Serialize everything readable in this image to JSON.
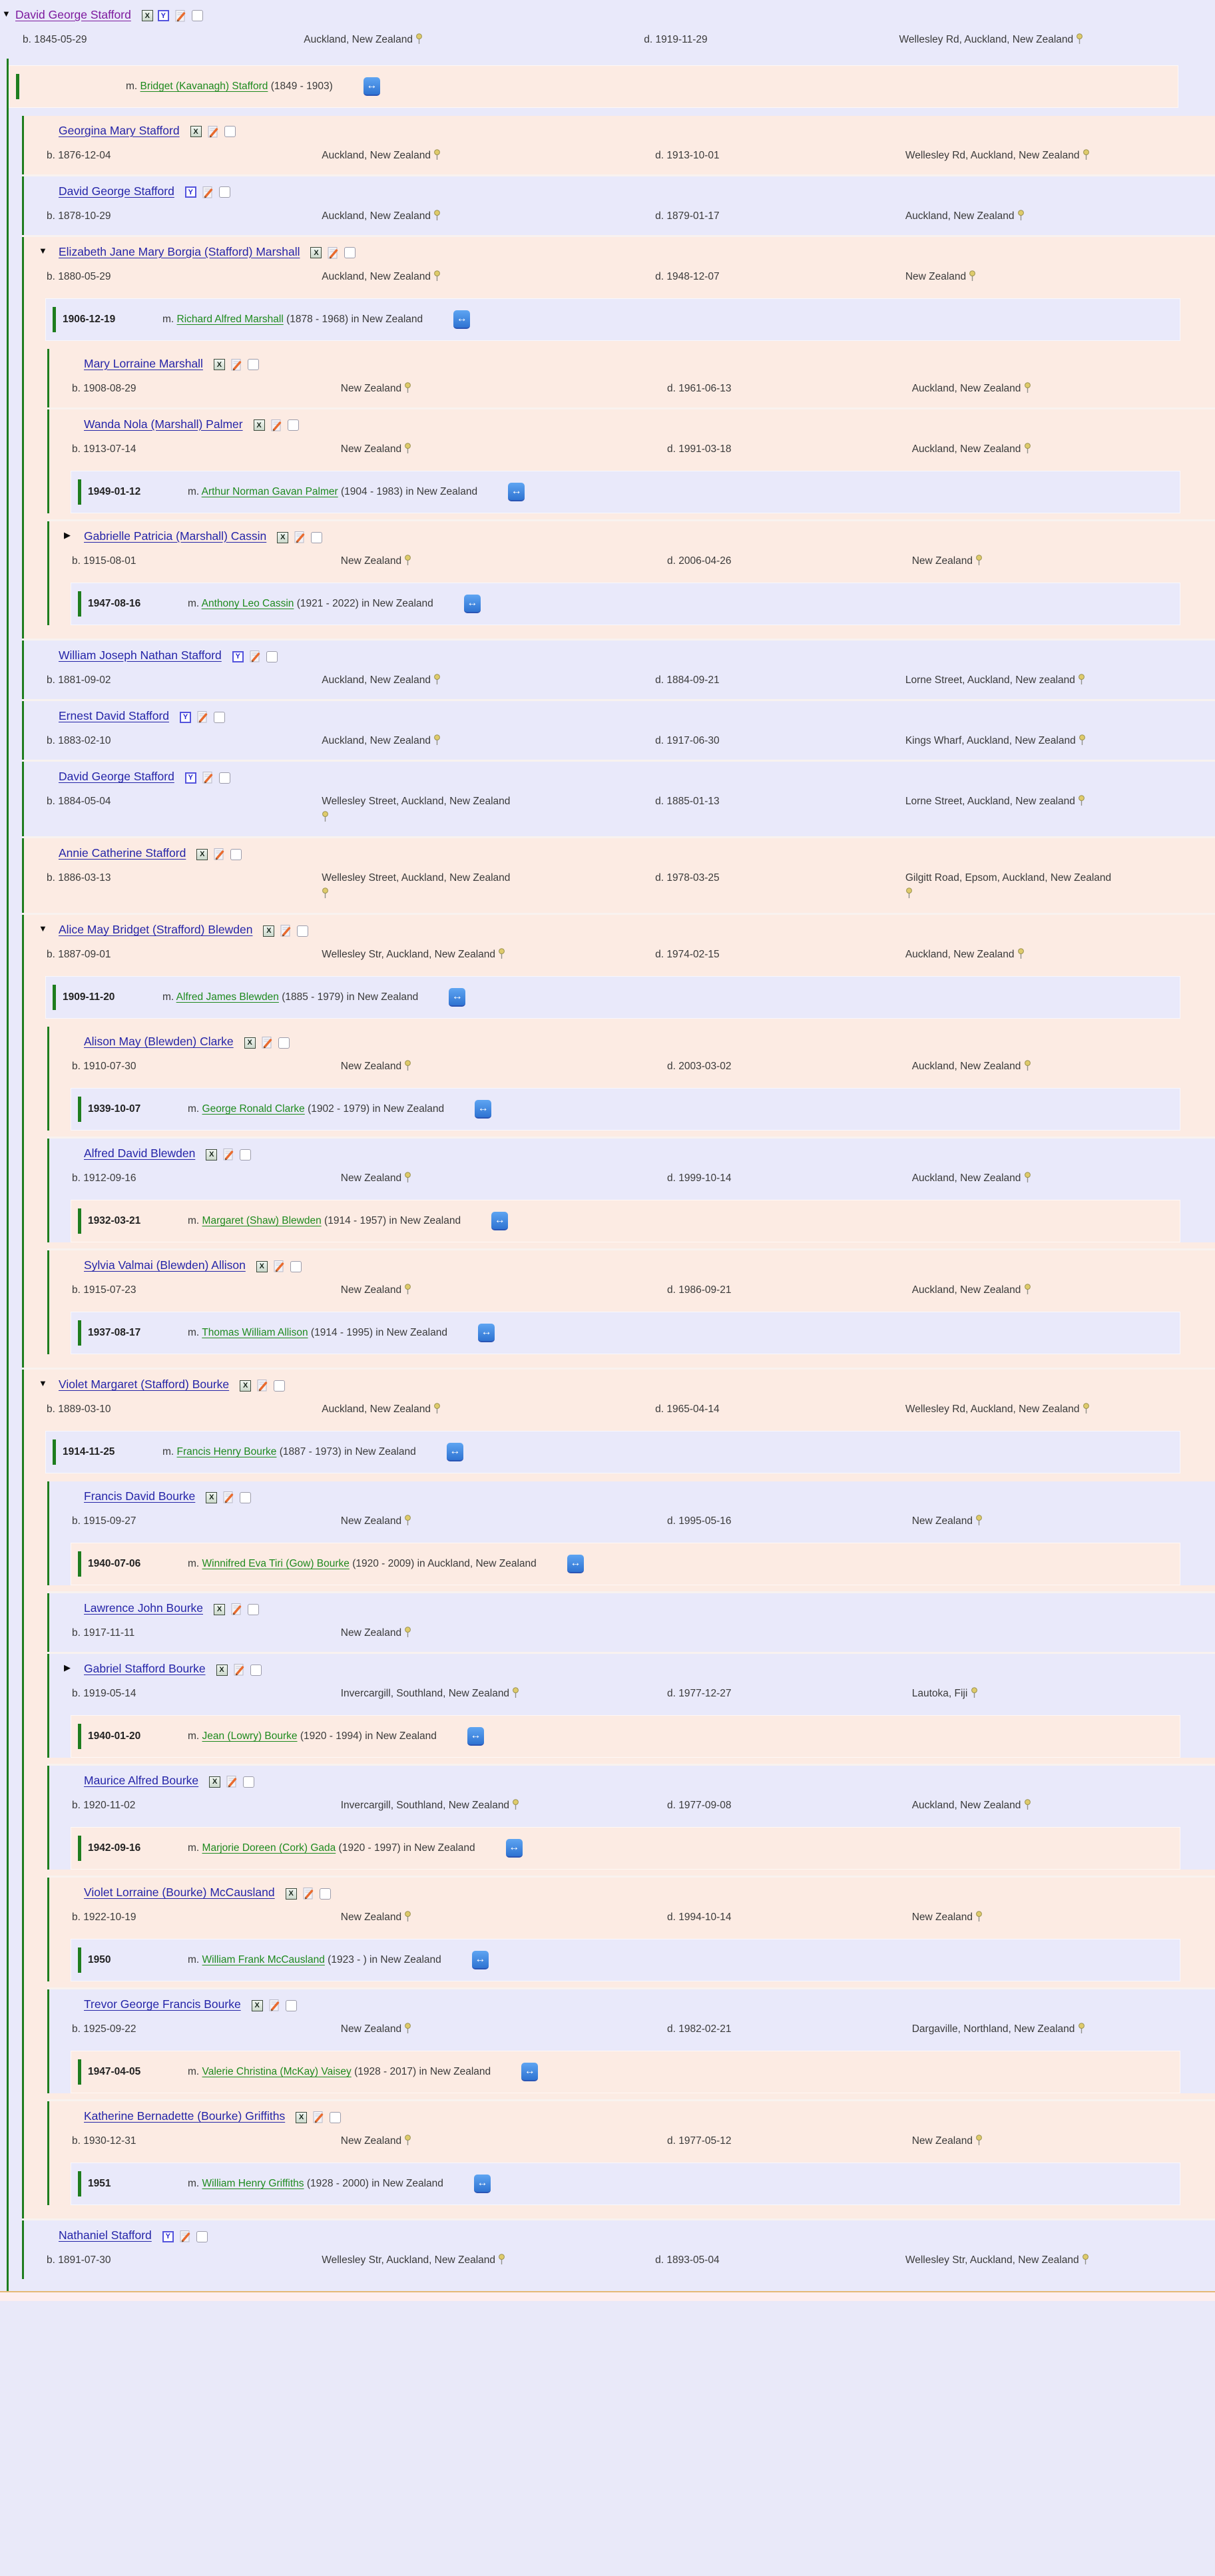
{
  "labels": {
    "b": "b.",
    "d": "d.",
    "m": "m."
  },
  "icons": {
    "tri_open": "▼",
    "tri_closed": "▶",
    "x_label": "X",
    "y_label": "Y",
    "compare_label": "↔"
  },
  "tree": {
    "name": "David George Stafford",
    "visited": true,
    "expand": "open",
    "dna": [
      "X",
      "Y"
    ],
    "shade": "lavender",
    "birth": {
      "date": "1845-05-29",
      "place": "Auckland, New Zealand"
    },
    "death": {
      "date": "1919-11-29",
      "place": "Wellesley Rd, Auckland, New Zealand"
    },
    "marriages": [
      {
        "date": "",
        "spouse": "Bridget (Kavanagh) Stafford",
        "detail": "(1849 - 1903)",
        "shade": "peach"
      }
    ],
    "children": [
      {
        "name": "Georgina Mary Stafford",
        "dna": [
          "X"
        ],
        "shade": "peach",
        "birth": {
          "date": "1876-12-04",
          "place": "Auckland, New Zealand"
        },
        "death": {
          "date": "1913-10-01",
          "place": "Wellesley Rd, Auckland, New Zealand"
        }
      },
      {
        "name": "David George Stafford",
        "dna": [
          "Y"
        ],
        "shade": "lavender",
        "birth": {
          "date": "1878-10-29",
          "place": "Auckland, New Zealand"
        },
        "death": {
          "date": "1879-01-17",
          "place": "Auckland, New Zealand"
        }
      },
      {
        "name": "Elizabeth Jane Mary Borgia (Stafford) Marshall",
        "expand": "open",
        "dna": [
          "X"
        ],
        "shade": "peach",
        "birth": {
          "date": "1880-05-29",
          "place": "Auckland, New Zealand"
        },
        "death": {
          "date": "1948-12-07",
          "place": "New Zealand"
        },
        "marriages": [
          {
            "date": "1906-12-19",
            "spouse": "Richard Alfred Marshall",
            "detail": "(1878 - 1968) in New Zealand",
            "shade": "lavender"
          }
        ],
        "children": [
          {
            "name": "Mary Lorraine Marshall",
            "dna": [
              "X"
            ],
            "shade": "peach",
            "birth": {
              "date": "1908-08-29",
              "place": "New Zealand"
            },
            "death": {
              "date": "1961-06-13",
              "place": "Auckland, New Zealand"
            }
          },
          {
            "name": "Wanda Nola (Marshall) Palmer",
            "dna": [
              "X"
            ],
            "shade": "peach",
            "birth": {
              "date": "1913-07-14",
              "place": "New Zealand"
            },
            "death": {
              "date": "1991-03-18",
              "place": "Auckland, New Zealand"
            },
            "marriages": [
              {
                "date": "1949-01-12",
                "spouse": "Arthur Norman Gavan Palmer",
                "detail": "(1904 - 1983) in New Zealand",
                "shade": "lavender"
              }
            ]
          },
          {
            "name": "Gabrielle Patricia (Marshall) Cassin",
            "expand": "closed",
            "dna": [
              "X"
            ],
            "shade": "peach",
            "birth": {
              "date": "1915-08-01",
              "place": "New Zealand"
            },
            "death": {
              "date": "2006-04-26",
              "place": "New Zealand"
            },
            "marriages": [
              {
                "date": "1947-08-16",
                "spouse": "Anthony Leo Cassin",
                "detail": "(1921 - 2022) in New Zealand",
                "shade": "lavender"
              }
            ]
          }
        ]
      },
      {
        "name": "William Joseph Nathan Stafford",
        "dna": [
          "Y"
        ],
        "shade": "lavender",
        "birth": {
          "date": "1881-09-02",
          "place": "Auckland, New Zealand"
        },
        "death": {
          "date": "1884-09-21",
          "place": "Lorne Street, Auckland, New zealand"
        }
      },
      {
        "name": "Ernest David Stafford",
        "dna": [
          "Y"
        ],
        "shade": "lavender",
        "birth": {
          "date": "1883-02-10",
          "place": "Auckland, New Zealand"
        },
        "death": {
          "date": "1917-06-30",
          "place": "Kings Wharf, Auckland, New Zealand"
        }
      },
      {
        "name": "David George Stafford",
        "dna": [
          "Y"
        ],
        "shade": "lavender",
        "birth": {
          "date": "1884-05-04",
          "place": "Wellesley Street, Auckland, New Zealand"
        },
        "death": {
          "date": "1885-01-13",
          "place": "Lorne Street, Auckland, New zealand"
        }
      },
      {
        "name": "Annie Catherine Stafford",
        "dna": [
          "X"
        ],
        "shade": "peach",
        "birth": {
          "date": "1886-03-13",
          "place": "Wellesley Street, Auckland, New Zealand"
        },
        "death": {
          "date": "1978-03-25",
          "place": "Gilgitt Road, Epsom, Auckland, New Zealand"
        }
      },
      {
        "name": "Alice May Bridget (Strafford) Blewden",
        "expand": "open",
        "dna": [
          "X"
        ],
        "shade": "peach",
        "birth": {
          "date": "1887-09-01",
          "place": "Wellesley Str, Auckland, New Zealand"
        },
        "death": {
          "date": "1974-02-15",
          "place": "Auckland, New Zealand"
        },
        "marriages": [
          {
            "date": "1909-11-20",
            "spouse": "Alfred James Blewden",
            "detail": "(1885 - 1979) in New Zealand",
            "shade": "lavender"
          }
        ],
        "children": [
          {
            "name": "Alison May (Blewden) Clarke",
            "dna": [
              "X"
            ],
            "shade": "peach",
            "birth": {
              "date": "1910-07-30",
              "place": "New Zealand"
            },
            "death": {
              "date": "2003-03-02",
              "place": "Auckland, New Zealand"
            },
            "marriages": [
              {
                "date": "1939-10-07",
                "spouse": "George Ronald Clarke",
                "detail": "(1902 - 1979) in New Zealand",
                "shade": "lavender"
              }
            ]
          },
          {
            "name": "Alfred David Blewden",
            "dna": [
              "X"
            ],
            "shade": "lavender",
            "birth": {
              "date": "1912-09-16",
              "place": "New Zealand"
            },
            "death": {
              "date": "1999-10-14",
              "place": "Auckland, New Zealand"
            },
            "marriages": [
              {
                "date": "1932-03-21",
                "spouse": "Margaret (Shaw) Blewden",
                "detail": "(1914 - 1957) in New Zealand",
                "shade": "peach"
              }
            ]
          },
          {
            "name": "Sylvia Valmai (Blewden) Allison",
            "dna": [
              "X"
            ],
            "shade": "peach",
            "birth": {
              "date": "1915-07-23",
              "place": "New Zealand"
            },
            "death": {
              "date": "1986-09-21",
              "place": "Auckland, New Zealand"
            },
            "marriages": [
              {
                "date": "1937-08-17",
                "spouse": "Thomas William Allison",
                "detail": "(1914 - 1995) in New Zealand",
                "shade": "lavender"
              }
            ]
          }
        ]
      },
      {
        "name": "Violet Margaret (Stafford) Bourke",
        "expand": "open",
        "dna": [
          "X"
        ],
        "shade": "peach",
        "birth": {
          "date": "1889-03-10",
          "place": "Auckland, New Zealand"
        },
        "death": {
          "date": "1965-04-14",
          "place": "Wellesley Rd, Auckland, New Zealand"
        },
        "marriages": [
          {
            "date": "1914-11-25",
            "spouse": "Francis Henry Bourke",
            "detail": "(1887 - 1973) in New Zealand",
            "shade": "lavender"
          }
        ],
        "children": [
          {
            "name": "Francis David Bourke",
            "dna": [
              "X"
            ],
            "shade": "lavender",
            "birth": {
              "date": "1915-09-27",
              "place": "New Zealand"
            },
            "death": {
              "date": "1995-05-16",
              "place": "New Zealand"
            },
            "marriages": [
              {
                "date": "1940-07-06",
                "spouse": "Winnifred Eva Tiri (Gow) Bourke",
                "detail": "(1920 - 2009) in Auckland, New Zealand",
                "shade": "peach"
              }
            ]
          },
          {
            "name": "Lawrence John Bourke",
            "dna": [
              "X"
            ],
            "shade": "lavender",
            "birth": {
              "date": "1917-11-11",
              "place": "New Zealand"
            }
          },
          {
            "name": "Gabriel Stafford Bourke",
            "expand": "closed",
            "dna": [
              "X"
            ],
            "shade": "lavender",
            "birth": {
              "date": "1919-05-14",
              "place": "Invercargill, Southland, New Zealand"
            },
            "death": {
              "date": "1977-12-27",
              "place": "Lautoka, Fiji"
            },
            "marriages": [
              {
                "date": "1940-01-20",
                "spouse": "Jean (Lowry) Bourke",
                "detail": "(1920 - 1994) in New Zealand",
                "shade": "peach"
              }
            ]
          },
          {
            "name": "Maurice Alfred Bourke",
            "dna": [
              "X"
            ],
            "shade": "lavender",
            "birth": {
              "date": "1920-11-02",
              "place": "Invercargill, Southland, New Zealand"
            },
            "death": {
              "date": "1977-09-08",
              "place": "Auckland, New Zealand"
            },
            "marriages": [
              {
                "date": "1942-09-16",
                "spouse": "Marjorie Doreen (Cork) Gada",
                "detail": "(1920 - 1997) in New Zealand",
                "shade": "peach"
              }
            ]
          },
          {
            "name": "Violet Lorraine (Bourke) McCausland",
            "dna": [
              "X"
            ],
            "shade": "peach",
            "birth": {
              "date": "1922-10-19",
              "place": "New Zealand"
            },
            "death": {
              "date": "1994-10-14",
              "place": "New Zealand"
            },
            "marriages": [
              {
                "date": "1950",
                "spouse": "William Frank McCausland",
                "detail": "(1923 - ) in New Zealand",
                "shade": "lavender"
              }
            ]
          },
          {
            "name": "Trevor George Francis Bourke",
            "dna": [
              "X"
            ],
            "shade": "lavender",
            "birth": {
              "date": "1925-09-22",
              "place": "New Zealand"
            },
            "death": {
              "date": "1982-02-21",
              "place": "Dargaville, Northland, New Zealand"
            },
            "marriages": [
              {
                "date": "1947-04-05",
                "spouse": "Valerie Christina (McKay) Vaisey",
                "detail": "(1928 - 2017) in New Zealand",
                "shade": "peach"
              }
            ]
          },
          {
            "name": "Katherine Bernadette (Bourke) Griffiths",
            "dna": [
              "X"
            ],
            "shade": "peach",
            "birth": {
              "date": "1930-12-31",
              "place": "New Zealand"
            },
            "death": {
              "date": "1977-05-12",
              "place": "New Zealand"
            },
            "marriages": [
              {
                "date": "1951",
                "spouse": "William Henry Griffiths",
                "detail": "(1928 - 2000) in New Zealand",
                "shade": "lavender"
              }
            ]
          }
        ]
      },
      {
        "name": "Nathaniel Stafford",
        "dna": [
          "Y"
        ],
        "shade": "lavender",
        "birth": {
          "date": "1891-07-30",
          "place": "Wellesley Str, Auckland, New Zealand"
        },
        "death": {
          "date": "1893-05-04",
          "place": "Wellesley Str, Auckland, New Zealand"
        }
      }
    ]
  }
}
